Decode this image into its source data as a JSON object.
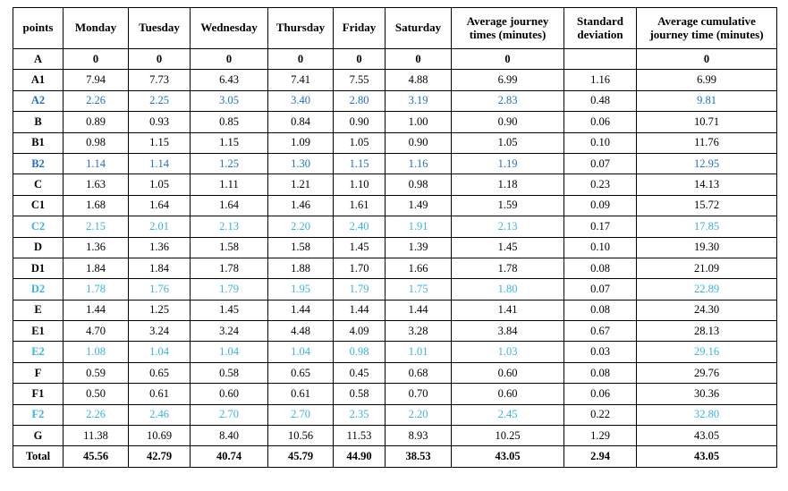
{
  "colors": {
    "accent_blue": "#1F6FC6",
    "accent_cyan": "#38B3E6",
    "text": "#000000",
    "border": "#000000",
    "background": "#FFFFFF"
  },
  "table": {
    "columns": [
      "points",
      "Monday",
      "Tuesday",
      "Wednesday",
      "Thursday",
      "Friday",
      "Saturday",
      "Average journey times (minutes)",
      "Standard deviation",
      "Average cumulative journey time (minutes)"
    ],
    "std_dev_column_index": 7,
    "rows": [
      {
        "point": "A",
        "variant": "bold",
        "values": [
          "0",
          "0",
          "0",
          "0",
          "0",
          "0",
          "0",
          "",
          "0"
        ]
      },
      {
        "point": "A1",
        "variant": "normal",
        "values": [
          "7.94",
          "7.73",
          "6.43",
          "7.41",
          "7.55",
          "4.88",
          "6.99",
          "1.16",
          "6.99"
        ]
      },
      {
        "point": "A2",
        "variant": "blue",
        "values": [
          "2.26",
          "2.25",
          "3.05",
          "3.40",
          "2.80",
          "3.19",
          "2.83",
          "0.48",
          "9.81"
        ]
      },
      {
        "point": "B",
        "variant": "normal",
        "values": [
          "0.89",
          "0.93",
          "0.85",
          "0.84",
          "0.90",
          "1.00",
          "0.90",
          "0.06",
          "10.71"
        ]
      },
      {
        "point": "B1",
        "variant": "normal",
        "values": [
          "0.98",
          "1.15",
          "1.15",
          "1.09",
          "1.05",
          "0.90",
          "1.05",
          "0.10",
          "11.76"
        ]
      },
      {
        "point": "B2",
        "variant": "blue",
        "values": [
          "1.14",
          "1.14",
          "1.25",
          "1.30",
          "1.15",
          "1.16",
          "1.19",
          "0.07",
          "12.95"
        ]
      },
      {
        "point": "C",
        "variant": "normal",
        "values": [
          "1.63",
          "1.05",
          "1.11",
          "1.21",
          "1.10",
          "0.98",
          "1.18",
          "0.23",
          "14.13"
        ]
      },
      {
        "point": "C1",
        "variant": "normal",
        "values": [
          "1.68",
          "1.64",
          "1.64",
          "1.46",
          "1.61",
          "1.49",
          "1.59",
          "0.09",
          "15.72"
        ]
      },
      {
        "point": "C2",
        "variant": "cyan",
        "values": [
          "2.15",
          "2.01",
          "2.13",
          "2.20",
          "2.40",
          "1.91",
          "2.13",
          "0.17",
          "17.85"
        ]
      },
      {
        "point": "D",
        "variant": "normal",
        "values": [
          "1.36",
          "1.36",
          "1.58",
          "1.58",
          "1.45",
          "1.39",
          "1.45",
          "0.10",
          "19.30"
        ]
      },
      {
        "point": "D1",
        "variant": "normal",
        "values": [
          "1.84",
          "1.84",
          "1.78",
          "1.88",
          "1.70",
          "1.66",
          "1.78",
          "0.08",
          "21.09"
        ]
      },
      {
        "point": "D2",
        "variant": "cyan",
        "values": [
          "1.78",
          "1.76",
          "1.79",
          "1.95",
          "1.79",
          "1.75",
          "1.80",
          "0.07",
          "22.89"
        ]
      },
      {
        "point": "E",
        "variant": "normal",
        "values": [
          "1.44",
          "1.25",
          "1.45",
          "1.44",
          "1.44",
          "1.44",
          "1.41",
          "0.08",
          "24.30"
        ]
      },
      {
        "point": "E1",
        "variant": "normal",
        "values": [
          "4.70",
          "3.24",
          "3.24",
          "4.48",
          "4.09",
          "3.28",
          "3.84",
          "0.67",
          "28.13"
        ]
      },
      {
        "point": "E2",
        "variant": "cyan",
        "values": [
          "1.08",
          "1.04",
          "1.04",
          "1.04",
          "0.98",
          "1.01",
          "1.03",
          "0.03",
          "29.16"
        ]
      },
      {
        "point": "F",
        "variant": "normal",
        "values": [
          "0.59",
          "0.65",
          "0.58",
          "0.65",
          "0.45",
          "0.68",
          "0.60",
          "0.08",
          "29.76"
        ]
      },
      {
        "point": "F1",
        "variant": "normal",
        "values": [
          "0.50",
          "0.61",
          "0.60",
          "0.61",
          "0.58",
          "0.70",
          "0.60",
          "0.06",
          "30.36"
        ]
      },
      {
        "point": "F2",
        "variant": "cyan",
        "values": [
          "2.26",
          "2.46",
          "2.70",
          "2.70",
          "2.35",
          "2.20",
          "2.45",
          "0.22",
          "32.80"
        ]
      },
      {
        "point": "G",
        "variant": "normal",
        "values": [
          "11.38",
          "10.69",
          "8.40",
          "10.56",
          "11.53",
          "8.93",
          "10.25",
          "1.29",
          "43.05"
        ]
      },
      {
        "point": "Total",
        "variant": "total",
        "values": [
          "45.56",
          "42.79",
          "40.74",
          "45.79",
          "44.90",
          "38.53",
          "43.05",
          "2.94",
          "43.05"
        ]
      }
    ]
  }
}
